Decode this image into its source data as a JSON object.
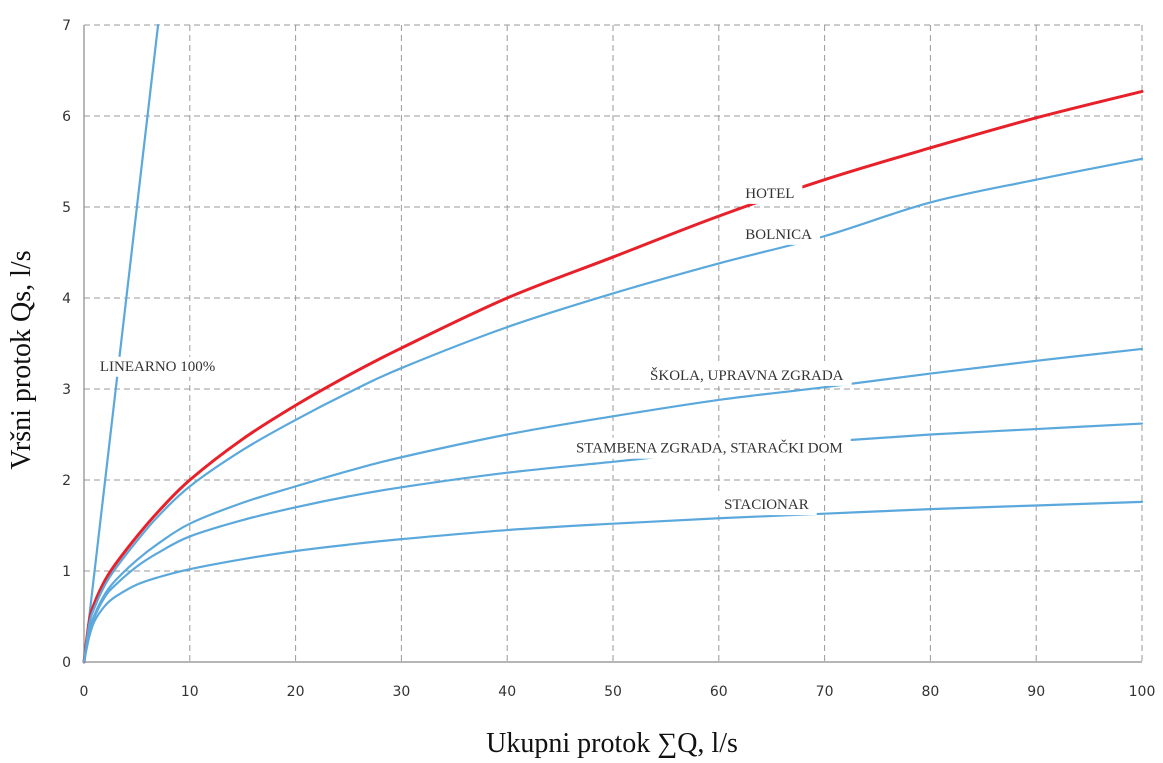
{
  "chart_data": {
    "type": "line",
    "title": "",
    "xlabel": "Ukupni protok ∑Q, l/s",
    "ylabel": "Vršni protok Qs, l/s",
    "xlim": [
      0,
      100
    ],
    "ylim": [
      0,
      7
    ],
    "x_ticks": [
      "0",
      "10",
      "20",
      "30",
      "40",
      "50",
      "60",
      "70",
      "80",
      "90",
      "100"
    ],
    "y_ticks": [
      "0",
      "1",
      "2",
      "3",
      "4",
      "5",
      "6",
      "7"
    ],
    "grid": true,
    "legend": "inline labels",
    "series": [
      {
        "name": "LINEARNO 100%",
        "color": "#5aa8dc",
        "points": [
          [
            0,
            0
          ],
          [
            7,
            7
          ]
        ]
      },
      {
        "name": "HOTEL",
        "color": "#e8202a",
        "points": [
          [
            0,
            0
          ],
          [
            0.5,
            0.45
          ],
          [
            1,
            0.65
          ],
          [
            2,
            0.9
          ],
          [
            3,
            1.08
          ],
          [
            5,
            1.38
          ],
          [
            7,
            1.65
          ],
          [
            10,
            2.0
          ],
          [
            15,
            2.45
          ],
          [
            20,
            2.82
          ],
          [
            25,
            3.15
          ],
          [
            30,
            3.45
          ],
          [
            40,
            4.0
          ],
          [
            50,
            4.45
          ],
          [
            60,
            4.9
          ],
          [
            70,
            5.3
          ],
          [
            80,
            5.65
          ],
          [
            90,
            5.98
          ],
          [
            100,
            6.27
          ]
        ]
      },
      {
        "name": "BOLNICA",
        "color": "#5aa8dc",
        "points": [
          [
            0,
            0
          ],
          [
            0.5,
            0.42
          ],
          [
            1,
            0.6
          ],
          [
            2,
            0.85
          ],
          [
            3,
            1.03
          ],
          [
            5,
            1.33
          ],
          [
            7,
            1.6
          ],
          [
            10,
            1.93
          ],
          [
            15,
            2.33
          ],
          [
            20,
            2.66
          ],
          [
            25,
            2.96
          ],
          [
            30,
            3.23
          ],
          [
            40,
            3.68
          ],
          [
            50,
            4.05
          ],
          [
            60,
            4.38
          ],
          [
            70,
            4.68
          ],
          [
            80,
            5.05
          ],
          [
            90,
            5.3
          ],
          [
            100,
            5.53
          ]
        ]
      },
      {
        "name": "ŠKOLA, UPRAVNA ZGRADA",
        "color": "#5aa8dc",
        "points": [
          [
            0,
            0
          ],
          [
            0.5,
            0.35
          ],
          [
            1,
            0.52
          ],
          [
            2,
            0.75
          ],
          [
            3,
            0.9
          ],
          [
            5,
            1.12
          ],
          [
            7,
            1.3
          ],
          [
            10,
            1.52
          ],
          [
            15,
            1.75
          ],
          [
            20,
            1.93
          ],
          [
            25,
            2.1
          ],
          [
            30,
            2.25
          ],
          [
            40,
            2.5
          ],
          [
            50,
            2.7
          ],
          [
            60,
            2.88
          ],
          [
            70,
            3.02
          ],
          [
            80,
            3.17
          ],
          [
            90,
            3.31
          ],
          [
            100,
            3.44
          ]
        ]
      },
      {
        "name": "STAMBENA ZGRADA, STARAČKI DOM",
        "color": "#5aa8dc",
        "points": [
          [
            0,
            0
          ],
          [
            0.5,
            0.33
          ],
          [
            1,
            0.5
          ],
          [
            2,
            0.72
          ],
          [
            3,
            0.85
          ],
          [
            5,
            1.05
          ],
          [
            7,
            1.2
          ],
          [
            10,
            1.38
          ],
          [
            15,
            1.56
          ],
          [
            20,
            1.7
          ],
          [
            25,
            1.82
          ],
          [
            30,
            1.92
          ],
          [
            40,
            2.08
          ],
          [
            50,
            2.2
          ],
          [
            60,
            2.32
          ],
          [
            70,
            2.42
          ],
          [
            80,
            2.5
          ],
          [
            90,
            2.56
          ],
          [
            100,
            2.62
          ]
        ]
      },
      {
        "name": "STACIONAR",
        "color": "#5aa8dc",
        "points": [
          [
            0,
            0
          ],
          [
            0.5,
            0.28
          ],
          [
            1,
            0.45
          ],
          [
            2,
            0.62
          ],
          [
            3,
            0.72
          ],
          [
            5,
            0.85
          ],
          [
            7,
            0.93
          ],
          [
            10,
            1.02
          ],
          [
            15,
            1.13
          ],
          [
            20,
            1.22
          ],
          [
            25,
            1.29
          ],
          [
            30,
            1.35
          ],
          [
            40,
            1.45
          ],
          [
            50,
            1.52
          ],
          [
            60,
            1.58
          ],
          [
            70,
            1.63
          ],
          [
            80,
            1.68
          ],
          [
            90,
            1.72
          ],
          [
            100,
            1.76
          ]
        ]
      }
    ],
    "labels": [
      {
        "text": "LINEARNO 100%",
        "x": 1.5,
        "y": 3.2
      },
      {
        "text": "HOTEL",
        "x": 62.5,
        "y": 5.1
      },
      {
        "text": "BOLNICA",
        "x": 62.5,
        "y": 4.65
      },
      {
        "text": "ŠKOLA, UPRAVNA ZGRADA",
        "x": 53.5,
        "y": 3.1
      },
      {
        "text": "STAMBENA ZGRADA, STARAČKI DOM",
        "x": 46.5,
        "y": 2.3
      },
      {
        "text": "STACIONAR",
        "x": 60.5,
        "y": 1.68
      }
    ]
  }
}
